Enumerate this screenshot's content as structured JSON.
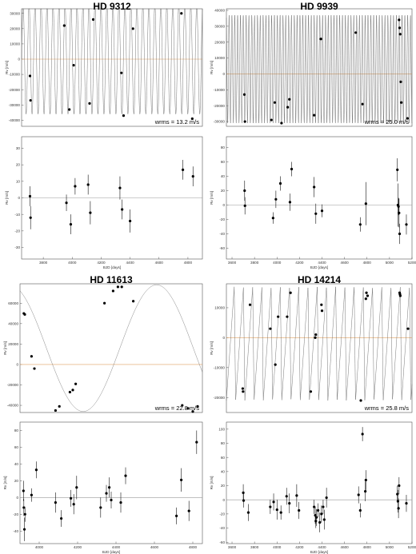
{
  "chart_data": [
    {
      "type": "line",
      "title": "HD 9312",
      "annotation": "wrms = 13.2 m/s",
      "ylabel": "Rv [m/s]",
      "xlabel": "",
      "xlim": [
        3650,
        4900
      ],
      "ylim": [
        -44000,
        33000
      ],
      "yticks": [
        -40000,
        -30000,
        -20000,
        -10000,
        0,
        10000,
        20000,
        30000
      ],
      "xticks": [],
      "reference_line": 0,
      "model": {
        "kind": "sine",
        "period": 41.4,
        "amplitude": 36000,
        "phase": 0.0,
        "offset": 0
      },
      "points": [
        {
          "x": 3708,
          "y": -11000
        },
        {
          "x": 3712,
          "y": -27000
        },
        {
          "x": 3945,
          "y": 22000
        },
        {
          "x": 3980,
          "y": -33000
        },
        {
          "x": 4010,
          "y": -4000
        },
        {
          "x": 4120,
          "y": -29000
        },
        {
          "x": 4145,
          "y": 26000
        },
        {
          "x": 4340,
          "y": -9000
        },
        {
          "x": 4355,
          "y": -37000
        },
        {
          "x": 4420,
          "y": 20000
        },
        {
          "x": 4755,
          "y": 30000
        },
        {
          "x": 4830,
          "y": -39000
        }
      ]
    },
    {
      "type": "scatter",
      "title": "",
      "xlabel": "BJD [days]",
      "ylabel": "Rv [m/s]",
      "xlim": [
        3650,
        4900
      ],
      "ylim": [
        -37,
        37
      ],
      "xticks": [
        3800,
        4000,
        4200,
        4400,
        4600,
        4800
      ],
      "yticks": [
        -30,
        -20,
        -10,
        0,
        10,
        20,
        30
      ],
      "reference_line": 0,
      "points": [
        {
          "x": 3708,
          "y": 1,
          "err": 6
        },
        {
          "x": 3712,
          "y": -12,
          "err": 7
        },
        {
          "x": 3960,
          "y": -3,
          "err": 5
        },
        {
          "x": 3990,
          "y": -16,
          "err": 6
        },
        {
          "x": 4020,
          "y": 7,
          "err": 5
        },
        {
          "x": 4110,
          "y": 8,
          "err": 6
        },
        {
          "x": 4125,
          "y": -9,
          "err": 7
        },
        {
          "x": 4330,
          "y": 6,
          "err": 7
        },
        {
          "x": 4345,
          "y": -7,
          "err": 6
        },
        {
          "x": 4400,
          "y": -14,
          "err": 7
        },
        {
          "x": 4765,
          "y": 17,
          "err": 6
        },
        {
          "x": 4835,
          "y": 13,
          "err": 6
        }
      ]
    },
    {
      "type": "line",
      "title": "HD 9939",
      "annotation": "wrms = 25.0 m/s",
      "ylabel": "Rv [m/s]",
      "xlabel": "",
      "xlim": [
        3550,
        5200
      ],
      "ylim": [
        -33000,
        41000
      ],
      "yticks": [
        -30000,
        -20000,
        -10000,
        0,
        10000,
        20000,
        30000,
        40000
      ],
      "xticks": [],
      "reference_line": 0,
      "model": {
        "kind": "sine",
        "period": 25.2,
        "amplitude": 34000,
        "phase": 0.3,
        "offset": 3000
      },
      "points": [
        {
          "x": 3710,
          "y": -13000
        },
        {
          "x": 3715,
          "y": -30000
        },
        {
          "x": 3950,
          "y": -29000
        },
        {
          "x": 3980,
          "y": -18000
        },
        {
          "x": 4040,
          "y": -31000
        },
        {
          "x": 4095,
          "y": -21000
        },
        {
          "x": 4110,
          "y": -16000
        },
        {
          "x": 4330,
          "y": -26000
        },
        {
          "x": 4390,
          "y": 22000
        },
        {
          "x": 4700,
          "y": 26000
        },
        {
          "x": 4760,
          "y": -19000
        },
        {
          "x": 5085,
          "y": 34000
        },
        {
          "x": 5090,
          "y": 29000
        },
        {
          "x": 5095,
          "y": 25000
        },
        {
          "x": 5100,
          "y": -5000
        },
        {
          "x": 5105,
          "y": -18000
        },
        {
          "x": 5160,
          "y": -28000
        }
      ]
    },
    {
      "type": "scatter",
      "title": "",
      "xlabel": "BJD [days]",
      "ylabel": "Rv [m/s]",
      "xlim": [
        3550,
        5200
      ],
      "ylim": [
        -75,
        95
      ],
      "xticks": [
        3600,
        3800,
        4000,
        4200,
        4400,
        4600,
        4800,
        5000,
        5200
      ],
      "yticks": [
        -60,
        -40,
        -20,
        0,
        20,
        40,
        60,
        80
      ],
      "reference_line": 0,
      "points": [
        {
          "x": 3712,
          "y": 20,
          "err": 14
        },
        {
          "x": 3715,
          "y": -1,
          "err": 12
        },
        {
          "x": 3965,
          "y": -18,
          "err": 8
        },
        {
          "x": 3990,
          "y": 8,
          "err": 12
        },
        {
          "x": 4030,
          "y": 30,
          "err": 10
        },
        {
          "x": 4115,
          "y": 4,
          "err": 12
        },
        {
          "x": 4130,
          "y": 50,
          "err": 10
        },
        {
          "x": 4330,
          "y": 25,
          "err": 14
        },
        {
          "x": 4345,
          "y": -12,
          "err": 14
        },
        {
          "x": 4400,
          "y": -8,
          "err": 9
        },
        {
          "x": 4740,
          "y": -27,
          "err": 10
        },
        {
          "x": 4790,
          "y": 2,
          "err": 30
        },
        {
          "x": 5070,
          "y": 49,
          "err": 16
        },
        {
          "x": 5075,
          "y": 0,
          "err": 30
        },
        {
          "x": 5080,
          "y": -2,
          "err": 12
        },
        {
          "x": 5085,
          "y": -11,
          "err": 20
        },
        {
          "x": 5090,
          "y": -40,
          "err": 14
        },
        {
          "x": 5150,
          "y": -27,
          "err": 14
        }
      ]
    },
    {
      "type": "line",
      "title": "HD 11613",
      "annotation": "wrms = 22.8 m/s",
      "ylabel": "Rv [m/s]",
      "xlabel": "",
      "xlim": [
        3900,
        4850
      ],
      "ylim": [
        -47000,
        79000
      ],
      "yticks": [
        -40000,
        -20000,
        0,
        20000,
        40000,
        60000
      ],
      "xticks": [],
      "reference_line": 0,
      "model": {
        "kind": "sine",
        "period": 765,
        "amplitude": 62000,
        "phase": 0.32,
        "offset": 16000
      },
      "points": [
        {
          "x": 3920,
          "y": 50000
        },
        {
          "x": 3925,
          "y": 49000
        },
        {
          "x": 3960,
          "y": 8000
        },
        {
          "x": 3975,
          "y": -4000
        },
        {
          "x": 4085,
          "y": -45000
        },
        {
          "x": 4105,
          "y": -41000
        },
        {
          "x": 4160,
          "y": -27000
        },
        {
          "x": 4175,
          "y": -25000
        },
        {
          "x": 4190,
          "y": -19000
        },
        {
          "x": 4340,
          "y": 60000
        },
        {
          "x": 4385,
          "y": 72000
        },
        {
          "x": 4410,
          "y": 76000
        },
        {
          "x": 4430,
          "y": 76000
        },
        {
          "x": 4490,
          "y": 62000
        },
        {
          "x": 4745,
          "y": -40000
        },
        {
          "x": 4775,
          "y": -43000
        },
        {
          "x": 4800,
          "y": -46000
        },
        {
          "x": 4825,
          "y": -41000
        }
      ]
    },
    {
      "type": "scatter",
      "title": "",
      "xlabel": "BJD [days]",
      "ylabel": "Rv [m/s]",
      "xlim": [
        3900,
        4850
      ],
      "ylim": [
        -55,
        90
      ],
      "xticks": [
        4000,
        4200,
        4400,
        4600,
        4800
      ],
      "yticks": [
        -40,
        -20,
        0,
        20,
        40,
        60,
        80
      ],
      "reference_line": 0,
      "points": [
        {
          "x": 3918,
          "y": 8,
          "err": 12
        },
        {
          "x": 3920,
          "y": -12,
          "err": 10
        },
        {
          "x": 3923,
          "y": -38,
          "err": 14
        },
        {
          "x": 3926,
          "y": -20,
          "err": 9
        },
        {
          "x": 3960,
          "y": 3,
          "err": 8
        },
        {
          "x": 3985,
          "y": 33,
          "err": 10
        },
        {
          "x": 4085,
          "y": -6,
          "err": 12
        },
        {
          "x": 4115,
          "y": -25,
          "err": 10
        },
        {
          "x": 4165,
          "y": -1,
          "err": 10
        },
        {
          "x": 4180,
          "y": -8,
          "err": 12
        },
        {
          "x": 4195,
          "y": 12,
          "err": 14
        },
        {
          "x": 4320,
          "y": -12,
          "err": 12
        },
        {
          "x": 4350,
          "y": 5,
          "err": 10
        },
        {
          "x": 4365,
          "y": 12,
          "err": 12
        },
        {
          "x": 4375,
          "y": -3,
          "err": 10
        },
        {
          "x": 4425,
          "y": -6,
          "err": 12
        },
        {
          "x": 4450,
          "y": 26,
          "err": 10
        },
        {
          "x": 4715,
          "y": -22,
          "err": 10
        },
        {
          "x": 4740,
          "y": 21,
          "err": 14
        },
        {
          "x": 4780,
          "y": -16,
          "err": 12
        },
        {
          "x": 4820,
          "y": 66,
          "err": 14
        }
      ]
    },
    {
      "type": "line",
      "title": "HD 14214",
      "annotation": "wrms = 25.8 m/s",
      "ylabel": "Rv [m/s]",
      "xlabel": "",
      "xlim": [
        3550,
        5200
      ],
      "ylim": [
        -25000,
        18000
      ],
      "yticks": [
        -20000,
        -10000,
        0,
        10000
      ],
      "xticks": [],
      "reference_line": 0,
      "model": {
        "kind": "sawtooth",
        "period": 82,
        "amplitude": 19000,
        "phase": 0.0,
        "offset": -2000
      },
      "points": [
        {
          "x": 3695,
          "y": -17000
        },
        {
          "x": 3698,
          "y": -18000
        },
        {
          "x": 3760,
          "y": 11000
        },
        {
          "x": 3940,
          "y": 3000
        },
        {
          "x": 3985,
          "y": -9000
        },
        {
          "x": 4010,
          "y": 7000
        },
        {
          "x": 4090,
          "y": 7000
        },
        {
          "x": 4120,
          "y": 15000
        },
        {
          "x": 4300,
          "y": -18000
        },
        {
          "x": 4340,
          "y": 0
        },
        {
          "x": 4345,
          "y": 1000
        },
        {
          "x": 4395,
          "y": 11000
        },
        {
          "x": 4400,
          "y": 9000
        },
        {
          "x": 4745,
          "y": -21000
        },
        {
          "x": 4790,
          "y": 13000
        },
        {
          "x": 4795,
          "y": 15000
        },
        {
          "x": 4805,
          "y": 14000
        },
        {
          "x": 5090,
          "y": 15000
        },
        {
          "x": 5093,
          "y": 14500
        },
        {
          "x": 5096,
          "y": 14000
        },
        {
          "x": 5165,
          "y": 3000
        }
      ]
    },
    {
      "type": "scatter",
      "title": "",
      "xlabel": "BJD [days]",
      "ylabel": "Rv [m/s]",
      "xlim": [
        3550,
        5200
      ],
      "ylim": [
        -62,
        110
      ],
      "xticks": [
        3600,
        3800,
        4000,
        4200,
        4400,
        4600,
        4800,
        5000,
        5200
      ],
      "yticks": [
        -60,
        -40,
        -20,
        0,
        20,
        40,
        60,
        80,
        100
      ],
      "reference_line": 0,
      "points": [
        {
          "x": 3700,
          "y": 10,
          "err": 12
        },
        {
          "x": 3703,
          "y": -1,
          "err": 10
        },
        {
          "x": 3745,
          "y": -18,
          "err": 12
        },
        {
          "x": 3940,
          "y": -10,
          "err": 10
        },
        {
          "x": 3970,
          "y": -3,
          "err": 12
        },
        {
          "x": 4000,
          "y": -14,
          "err": 14
        },
        {
          "x": 4035,
          "y": -18,
          "err": 10
        },
        {
          "x": 4085,
          "y": 5,
          "err": 12
        },
        {
          "x": 4110,
          "y": -5,
          "err": 14
        },
        {
          "x": 4175,
          "y": 6,
          "err": 16
        },
        {
          "x": 4195,
          "y": -15,
          "err": 12
        },
        {
          "x": 4330,
          "y": -10,
          "err": 10
        },
        {
          "x": 4340,
          "y": -22,
          "err": 12
        },
        {
          "x": 4345,
          "y": -30,
          "err": 10
        },
        {
          "x": 4350,
          "y": -25,
          "err": 12
        },
        {
          "x": 4365,
          "y": -15,
          "err": 10
        },
        {
          "x": 4380,
          "y": -32,
          "err": 14
        },
        {
          "x": 4395,
          "y": -20,
          "err": 12
        },
        {
          "x": 4410,
          "y": -10,
          "err": 10
        },
        {
          "x": 4420,
          "y": -28,
          "err": 14
        },
        {
          "x": 4440,
          "y": 3,
          "err": 14
        },
        {
          "x": 4725,
          "y": 7,
          "err": 12
        },
        {
          "x": 4740,
          "y": -15,
          "err": 10
        },
        {
          "x": 4760,
          "y": 93,
          "err": 10
        },
        {
          "x": 4785,
          "y": 12,
          "err": 14
        },
        {
          "x": 4790,
          "y": 28,
          "err": 14
        },
        {
          "x": 5070,
          "y": 8,
          "err": 12
        },
        {
          "x": 5075,
          "y": -2,
          "err": 16
        },
        {
          "x": 5080,
          "y": -12,
          "err": 14
        },
        {
          "x": 5085,
          "y": 20,
          "err": 12
        },
        {
          "x": 5150,
          "y": -5,
          "err": 12
        }
      ]
    }
  ]
}
